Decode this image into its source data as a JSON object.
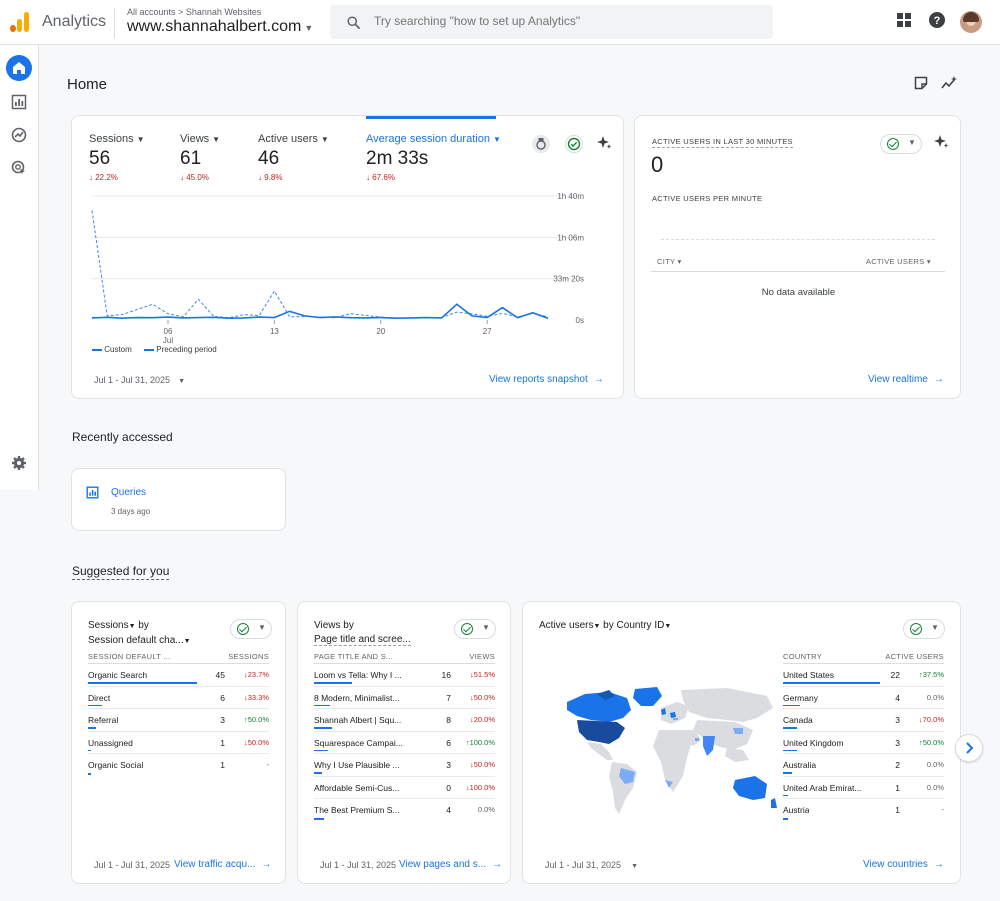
{
  "header": {
    "app_name": "Analytics",
    "breadcrumb_all": "All accounts",
    "breadcrumb_account": "Shannah Websites",
    "property": "www.shannahalbert.com",
    "search_placeholder": "Try searching \"how to set up Analytics\""
  },
  "page": {
    "title": "Home"
  },
  "overview": {
    "metrics": [
      {
        "label": "Sessions",
        "value": "56",
        "delta": "22.2%"
      },
      {
        "label": "Views",
        "value": "61",
        "delta": "45.0%"
      },
      {
        "label": "Active users",
        "value": "46",
        "delta": "9.8%"
      },
      {
        "label": "Average session duration",
        "value": "2m 33s",
        "delta": "67.6%"
      }
    ],
    "legend_current": "Custom",
    "legend_previous": "Preceding period",
    "date_range": "Jul 1 - Jul 31, 2025",
    "link": "View reports snapshot"
  },
  "chart_data": {
    "type": "line",
    "x": [
      1,
      2,
      3,
      4,
      5,
      6,
      7,
      8,
      9,
      10,
      11,
      12,
      13,
      14,
      15,
      16,
      17,
      18,
      19,
      20,
      21,
      22,
      23,
      24,
      25,
      26,
      27,
      28,
      29,
      30,
      31
    ],
    "x_tick_labels": [
      "06",
      "13",
      "20",
      "27"
    ],
    "x_tick_month": "Jul",
    "y_tick_labels": [
      "0s",
      "33m 20s",
      "1h 06m",
      "1h 40m"
    ],
    "ylim": [
      0,
      6000
    ],
    "series": [
      {
        "name": "Custom",
        "values": [
          100,
          130,
          90,
          120,
          110,
          140,
          100,
          120,
          130,
          90,
          100,
          140,
          120,
          420,
          200,
          120,
          150,
          110,
          100,
          120,
          90,
          100,
          120,
          100,
          760,
          200,
          120,
          600,
          110,
          350,
          80
        ]
      },
      {
        "name": "Preceding period",
        "values": [
          5300,
          200,
          260,
          520,
          760,
          300,
          150,
          1000,
          180,
          110,
          260,
          210,
          1400,
          150,
          170,
          140,
          110,
          310,
          220,
          140,
          90,
          100,
          110,
          120,
          380,
          300,
          180,
          320,
          150,
          330,
          150
        ]
      }
    ]
  },
  "realtime": {
    "title": "ACTIVE USERS IN LAST 30 MINUTES",
    "value": "0",
    "per_minute": "ACTIVE USERS PER MINUTE",
    "col_city": "CITY",
    "col_users": "ACTIVE USERS",
    "empty": "No data available",
    "link": "View realtime"
  },
  "recent": {
    "section_title": "Recently accessed",
    "item_title": "Queries",
    "item_time": "3 days ago"
  },
  "suggested": {
    "section_title": "Suggested for you",
    "traffic": {
      "title_line1": "Sessions",
      "title_by": " by",
      "title_line2": "Session default cha...",
      "col_dim": "SESSION DEFAULT ...",
      "col_metric": "SESSIONS",
      "rows": [
        {
          "name": "Organic Search",
          "value": "45",
          "delta": "23.7%",
          "dir": "down",
          "bar": 1.0
        },
        {
          "name": "Direct",
          "value": "6",
          "delta": "33.3%",
          "dir": "down",
          "bar": 0.13
        },
        {
          "name": "Referral",
          "value": "3",
          "delta": "50.0%",
          "dir": "up",
          "bar": 0.07
        },
        {
          "name": "Unassigned",
          "value": "1",
          "delta": "50.0%",
          "dir": "down",
          "bar": 0.02
        },
        {
          "name": "Organic Social",
          "value": "1",
          "delta": "-",
          "dir": "flat",
          "bar": 0.02
        }
      ],
      "date_range": "Jul 1 - Jul 31, 2025",
      "link": "View traffic acqu..."
    },
    "pages": {
      "title_line1": "Views by",
      "title_line2": "Page title and scree...",
      "col_dim": "PAGE TITLE AND S...",
      "col_metric": "VIEWS",
      "rows": [
        {
          "name": "Loom vs Tella: Why I ...",
          "value": "16",
          "delta": "51.5%",
          "dir": "down",
          "bar": 0.35
        },
        {
          "name": "8 Modern, Minimalist...",
          "value": "7",
          "delta": "50.0%",
          "dir": "down",
          "bar": 0.15
        },
        {
          "name": "Shannah Albert | Squ...",
          "value": "8",
          "delta": "20.0%",
          "dir": "down",
          "bar": 0.17
        },
        {
          "name": "Squarespace Campai...",
          "value": "6",
          "delta": "100.0%",
          "dir": "up",
          "bar": 0.13
        },
        {
          "name": "Why I Use Plausible ...",
          "value": "3",
          "delta": "50.0%",
          "dir": "down",
          "bar": 0.07
        },
        {
          "name": "Affordable Semi-Cus...",
          "value": "0",
          "delta": "100.0%",
          "dir": "down",
          "bar": 0.0
        },
        {
          "name": "The Best Premium S...",
          "value": "4",
          "delta": "0.0%",
          "dir": "flat",
          "bar": 0.09
        }
      ],
      "date_range": "Jul 1 - Jul 31, 2025",
      "link": "View pages and s..."
    },
    "countries": {
      "title_metric": "Active users",
      "title_by": " by ",
      "title_dim": "Country ID",
      "col_dim": "COUNTRY",
      "col_metric": "ACTIVE USERS",
      "rows": [
        {
          "name": "United States",
          "value": "22",
          "delta": "37.5%",
          "dir": "up",
          "bar": 1.0
        },
        {
          "name": "Germany",
          "value": "4",
          "delta": "0.0%",
          "dir": "flat",
          "bar": 0.18
        },
        {
          "name": "Canada",
          "value": "3",
          "delta": "70.0%",
          "dir": "down",
          "bar": 0.14
        },
        {
          "name": "United Kingdom",
          "value": "3",
          "delta": "50.0%",
          "dir": "up",
          "bar": 0.14
        },
        {
          "name": "Australia",
          "value": "2",
          "delta": "0.0%",
          "dir": "flat",
          "bar": 0.09
        },
        {
          "name": "United Arab Emirat...",
          "value": "1",
          "delta": "0.0%",
          "dir": "flat",
          "bar": 0.05
        },
        {
          "name": "Austria",
          "value": "1",
          "delta": "-",
          "dir": "flat",
          "bar": 0.05
        }
      ],
      "date_range": "Jul 1 - Jul 31, 2025",
      "link": "View countries"
    }
  },
  "colors": {
    "accent": "#1a73e8",
    "down": "#c5221f",
    "up": "#188038",
    "logo_orange": "#f9ab00",
    "logo_dark": "#e37400"
  },
  "icons": [
    "apps-icon",
    "help-icon",
    "home-icon",
    "reports-icon",
    "explore-icon",
    "advertising-icon",
    "settings-icon",
    "search-icon"
  ]
}
